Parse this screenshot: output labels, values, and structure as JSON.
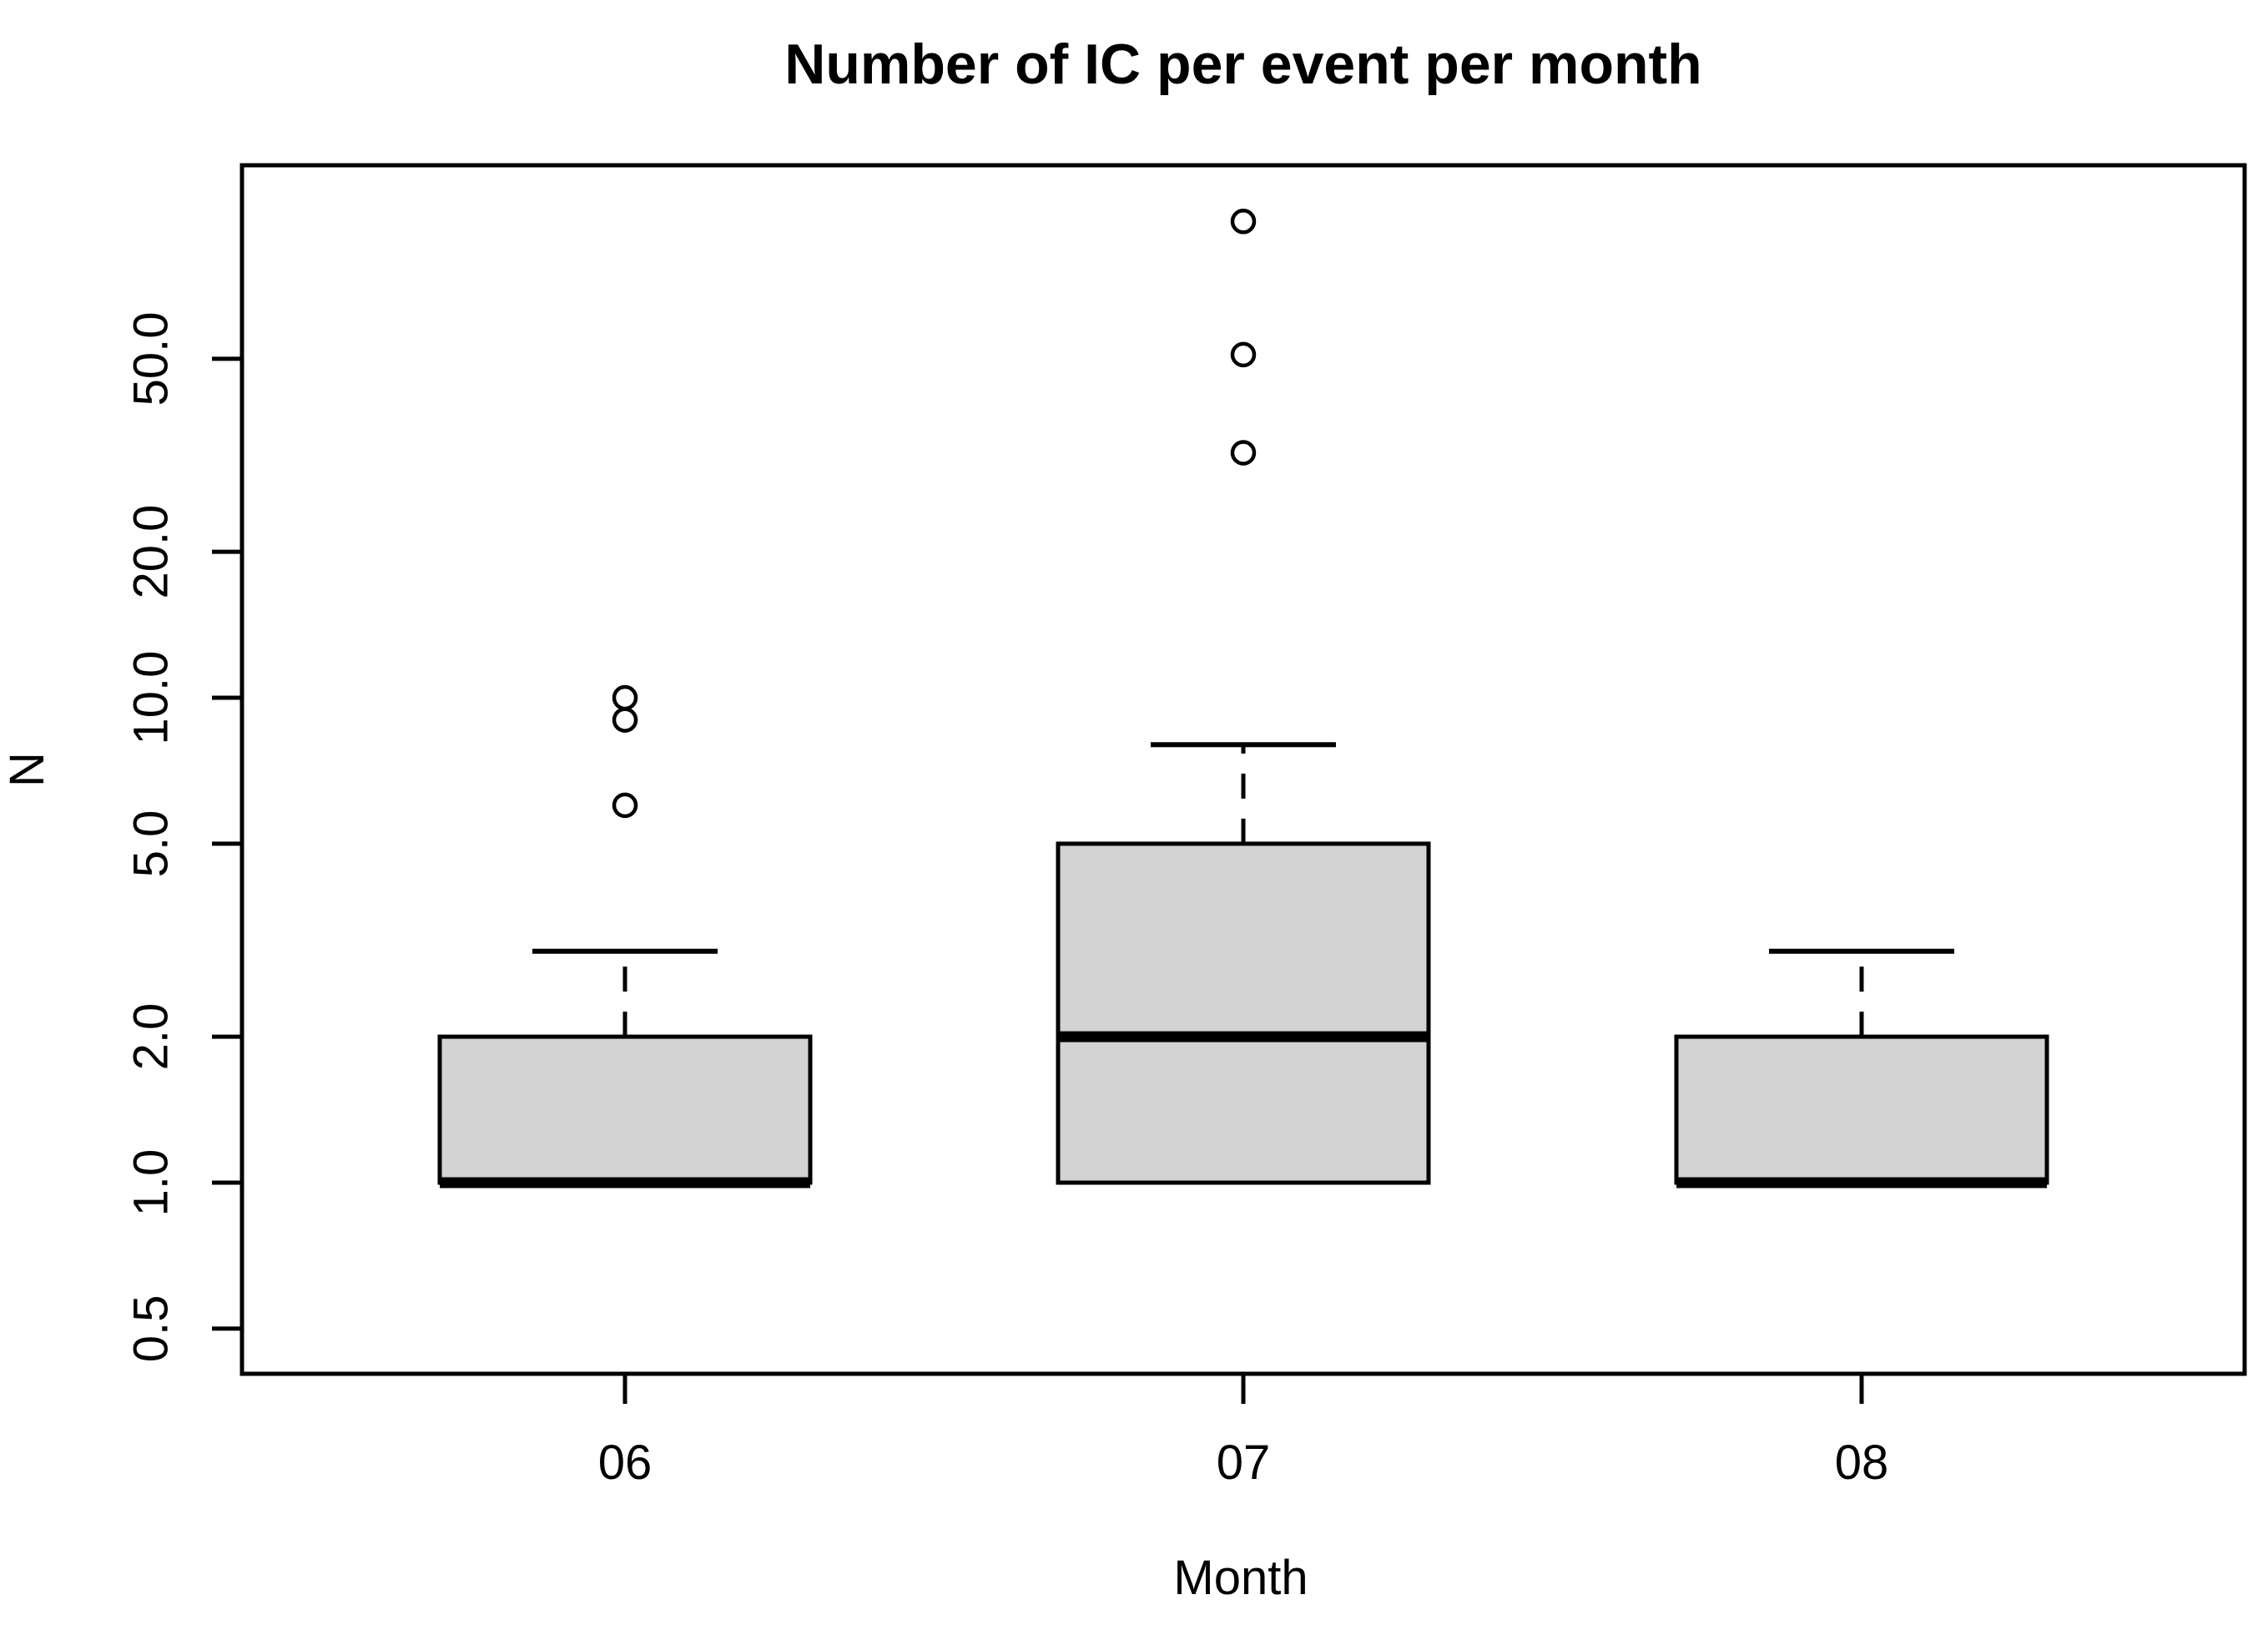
{
  "chart_data": {
    "type": "boxplot",
    "title": "Number of IC per event per month",
    "xlabel": "Month",
    "ylabel": "N",
    "y_scale": "log10",
    "ylim": [
      0.4,
      125
    ],
    "grid": false,
    "legend": "none",
    "y_ticks": [
      0.5,
      1.0,
      2.0,
      5.0,
      10.0,
      20.0,
      50.0
    ],
    "y_tick_labels": [
      "0.5",
      "1.0",
      "2.0",
      "5.0",
      "10.0",
      "20.0",
      "50.0"
    ],
    "categories": [
      "06",
      "07",
      "08"
    ],
    "series": [
      {
        "category": "06",
        "q1": 1.0,
        "median": 1.0,
        "q3": 2.0,
        "whisker_low": 1.0,
        "whisker_high": 3.0,
        "outliers": [
          6,
          9,
          10
        ]
      },
      {
        "category": "07",
        "q1": 1.0,
        "median": 2.0,
        "q3": 5.0,
        "whisker_low": 1.0,
        "whisker_high": 8.0,
        "outliers": [
          32,
          51,
          96
        ]
      },
      {
        "category": "08",
        "q1": 1.0,
        "median": 1.0,
        "q3": 2.0,
        "whisker_low": 1.0,
        "whisker_high": 3.0,
        "outliers": []
      }
    ],
    "colors": {
      "box_fill": "#d3d3d3",
      "line": "#000000",
      "background": "#ffffff"
    }
  }
}
